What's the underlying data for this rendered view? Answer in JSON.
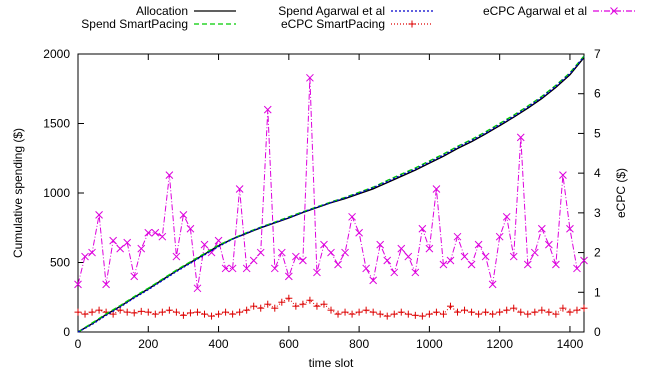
{
  "chart_data": {
    "type": "line",
    "title": "",
    "xlabel": "time slot",
    "ylabel_left": "Cumulative spending ($)",
    "ylabel_right": "eCPC ($)",
    "xlim": [
      0,
      1440
    ],
    "ylim_left": [
      0,
      2000
    ],
    "ylim_right": [
      0,
      7
    ],
    "xticks": [
      0,
      200,
      400,
      600,
      800,
      1000,
      1200,
      1400
    ],
    "yticks_left": [
      0,
      500,
      1000,
      1500,
      2000
    ],
    "yticks_right": [
      0,
      1,
      2,
      3,
      4,
      5,
      6,
      7
    ],
    "grid": false,
    "legend_position": "top",
    "series": [
      {
        "name": "Allocation",
        "axis": "left",
        "color": "#000000",
        "dash": "",
        "marker": "none",
        "x": [
          0,
          40,
          80,
          120,
          160,
          200,
          240,
          280,
          320,
          360,
          400,
          440,
          480,
          520,
          560,
          600,
          640,
          680,
          720,
          760,
          800,
          840,
          880,
          920,
          960,
          1000,
          1040,
          1080,
          1120,
          1160,
          1200,
          1240,
          1280,
          1320,
          1360,
          1400,
          1440
        ],
        "y": [
          0,
          60,
          125,
          185,
          250,
          310,
          375,
          440,
          500,
          560,
          620,
          670,
          710,
          750,
          785,
          820,
          860,
          895,
          930,
          960,
          995,
          1030,
          1075,
          1120,
          1165,
          1215,
          1265,
          1320,
          1370,
          1425,
          1485,
          1545,
          1610,
          1680,
          1760,
          1850,
          1975
        ]
      },
      {
        "name": "Spend SmartPacing",
        "axis": "left",
        "color": "#00cc00",
        "dash": "5,3",
        "marker": "none",
        "x": [
          0,
          40,
          80,
          120,
          160,
          200,
          240,
          280,
          320,
          360,
          400,
          440,
          480,
          520,
          560,
          600,
          640,
          680,
          720,
          760,
          800,
          840,
          880,
          920,
          960,
          1000,
          1040,
          1080,
          1120,
          1160,
          1200,
          1240,
          1280,
          1320,
          1360,
          1400,
          1440
        ],
        "y": [
          0,
          65,
          130,
          190,
          255,
          315,
          380,
          445,
          505,
          565,
          625,
          672,
          715,
          755,
          790,
          828,
          865,
          900,
          935,
          968,
          1005,
          1042,
          1090,
          1135,
          1180,
          1230,
          1280,
          1335,
          1385,
          1440,
          1500,
          1560,
          1625,
          1695,
          1775,
          1865,
          1985
        ]
      },
      {
        "name": "Spend Agarwal et al",
        "axis": "left",
        "color": "#0000cc",
        "dash": "2,2",
        "marker": "none",
        "x": [
          0,
          40,
          80,
          120,
          160,
          200,
          240,
          280,
          320,
          360,
          400,
          440,
          480,
          520,
          560,
          600,
          640,
          680,
          720,
          760,
          800,
          840,
          880,
          920,
          960,
          1000,
          1040,
          1080,
          1120,
          1160,
          1200,
          1240,
          1280,
          1320,
          1360,
          1400,
          1440
        ],
        "y": [
          0,
          55,
          120,
          180,
          245,
          305,
          370,
          435,
          495,
          555,
          615,
          668,
          712,
          752,
          788,
          822,
          862,
          898,
          932,
          965,
          1000,
          1038,
          1082,
          1128,
          1172,
          1222,
          1272,
          1328,
          1378,
          1432,
          1492,
          1552,
          1618,
          1688,
          1768,
          1858,
          1980
        ]
      },
      {
        "name": "eCPC SmartPacing",
        "axis": "right",
        "color": "#dd0000",
        "dash": "1,2",
        "marker": "plus",
        "x": [
          0,
          20,
          40,
          60,
          80,
          100,
          120,
          140,
          160,
          180,
          200,
          220,
          240,
          260,
          280,
          300,
          320,
          340,
          360,
          380,
          400,
          420,
          440,
          460,
          480,
          500,
          520,
          540,
          560,
          580,
          600,
          620,
          640,
          660,
          680,
          700,
          720,
          740,
          760,
          780,
          800,
          820,
          840,
          860,
          880,
          900,
          920,
          940,
          960,
          980,
          1000,
          1020,
          1040,
          1060,
          1080,
          1100,
          1120,
          1140,
          1160,
          1180,
          1200,
          1220,
          1240,
          1260,
          1280,
          1300,
          1320,
          1340,
          1360,
          1380,
          1400,
          1420,
          1440
        ],
        "y": [
          0.5,
          0.45,
          0.5,
          0.55,
          0.5,
          0.45,
          0.55,
          0.5,
          0.48,
          0.52,
          0.5,
          0.45,
          0.5,
          0.55,
          0.5,
          0.42,
          0.48,
          0.5,
          0.45,
          0.4,
          0.45,
          0.5,
          0.45,
          0.5,
          0.55,
          0.65,
          0.6,
          0.7,
          0.6,
          0.75,
          0.85,
          0.65,
          0.7,
          0.8,
          0.65,
          0.7,
          0.55,
          0.45,
          0.5,
          0.45,
          0.5,
          0.55,
          0.5,
          0.45,
          0.4,
          0.45,
          0.5,
          0.45,
          0.42,
          0.4,
          0.45,
          0.5,
          0.45,
          0.65,
          0.5,
          0.55,
          0.5,
          0.45,
          0.5,
          0.45,
          0.5,
          0.55,
          0.6,
          0.5,
          0.45,
          0.5,
          0.55,
          0.5,
          0.45,
          0.6,
          0.5,
          0.55,
          0.6
        ]
      },
      {
        "name": "eCPC Agarwal et al",
        "axis": "right",
        "color": "#dd00dd",
        "dash": "6,2,1,2",
        "marker": "x",
        "x": [
          0,
          20,
          40,
          60,
          80,
          100,
          120,
          140,
          160,
          180,
          200,
          220,
          240,
          260,
          280,
          300,
          320,
          340,
          360,
          380,
          400,
          420,
          440,
          460,
          480,
          500,
          520,
          540,
          560,
          580,
          600,
          620,
          640,
          660,
          680,
          700,
          720,
          740,
          760,
          780,
          800,
          820,
          840,
          860,
          880,
          900,
          920,
          940,
          960,
          980,
          1000,
          1020,
          1040,
          1060,
          1080,
          1100,
          1120,
          1140,
          1160,
          1180,
          1200,
          1220,
          1240,
          1260,
          1280,
          1300,
          1320,
          1340,
          1360,
          1380,
          1400,
          1420,
          1440
        ],
        "y": [
          1.2,
          1.9,
          2.0,
          2.95,
          1.2,
          2.3,
          2.1,
          2.25,
          1.4,
          2.1,
          2.5,
          2.5,
          2.4,
          3.95,
          1.9,
          2.95,
          2.6,
          1.1,
          2.2,
          2.0,
          2.3,
          1.6,
          1.6,
          3.6,
          1.6,
          1.8,
          2.0,
          5.6,
          1.6,
          2.0,
          1.4,
          1.9,
          1.8,
          6.4,
          1.5,
          2.2,
          2.0,
          1.7,
          2.0,
          2.9,
          2.5,
          1.6,
          1.3,
          2.2,
          1.8,
          1.5,
          2.1,
          1.9,
          1.5,
          2.6,
          2.1,
          3.6,
          1.7,
          1.8,
          2.4,
          1.9,
          1.7,
          2.2,
          1.9,
          1.2,
          2.4,
          2.9,
          1.9,
          4.9,
          1.7,
          2.0,
          2.6,
          2.2,
          1.7,
          3.95,
          2.6,
          1.6,
          1.8
        ]
      }
    ]
  }
}
